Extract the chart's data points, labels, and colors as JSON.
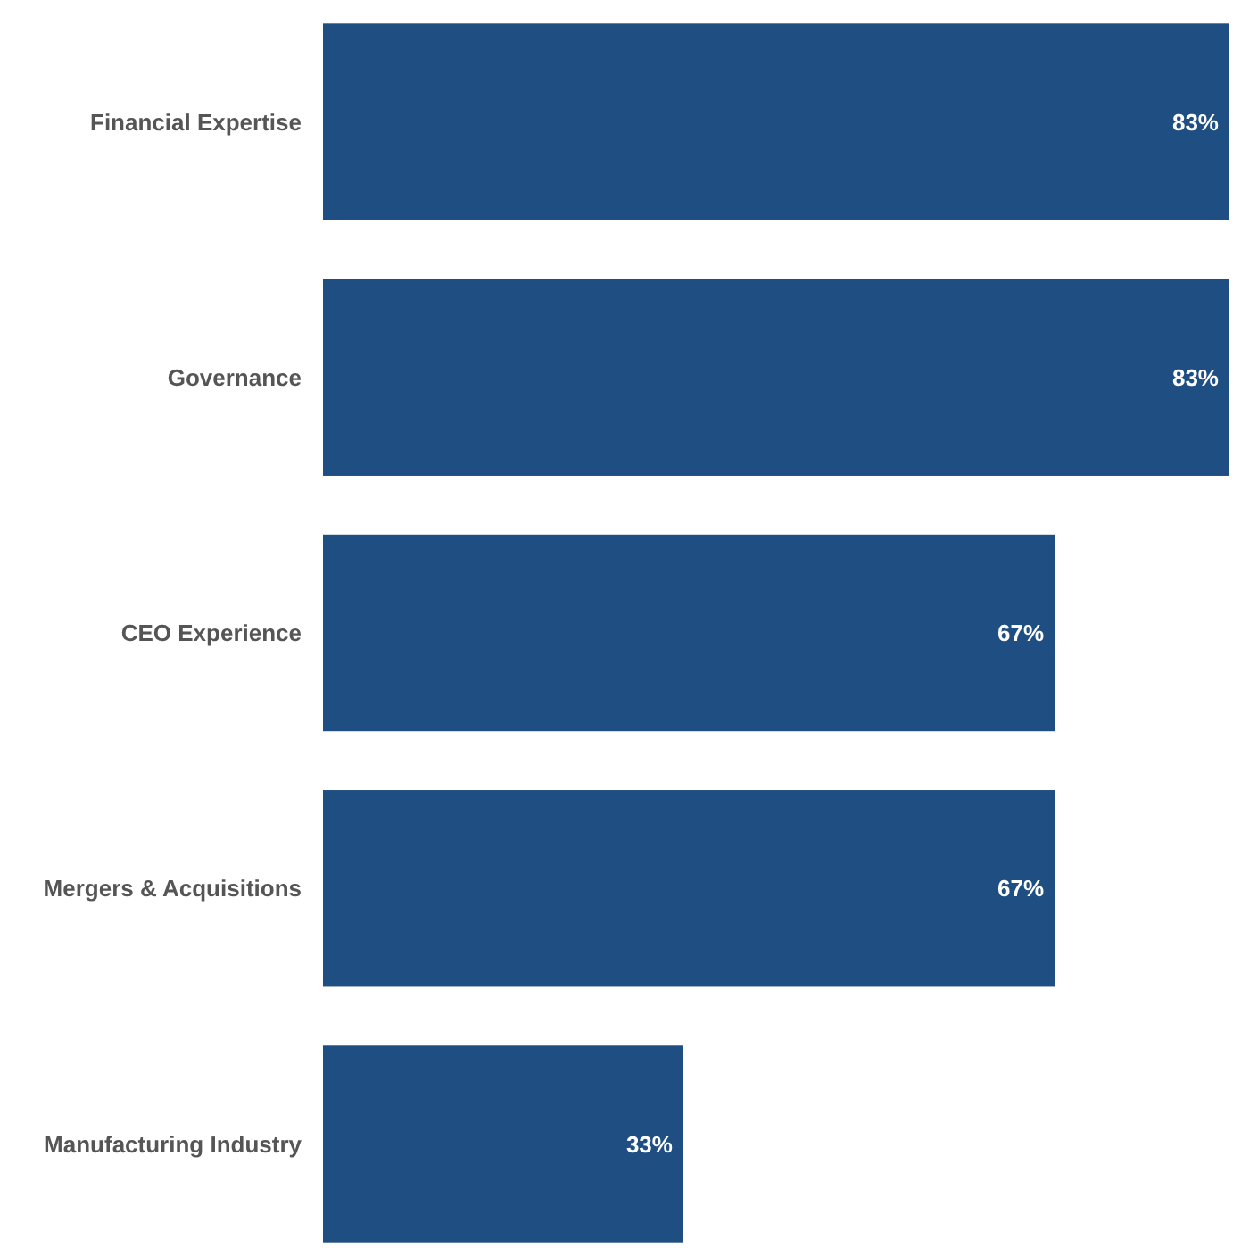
{
  "chart_data": {
    "type": "bar",
    "orientation": "horizontal",
    "categories": [
      "Financial Expertise",
      "Governance",
      "CEO Experience",
      "Mergers & Acquisitions",
      "Manufacturing Industry"
    ],
    "values": [
      83,
      83,
      67,
      67,
      33
    ],
    "value_labels": [
      "83%",
      "83%",
      "67%",
      "67%",
      "33%"
    ],
    "color": "#1f4e82",
    "xlim": [
      0,
      83
    ],
    "tick_labels": "y"
  }
}
